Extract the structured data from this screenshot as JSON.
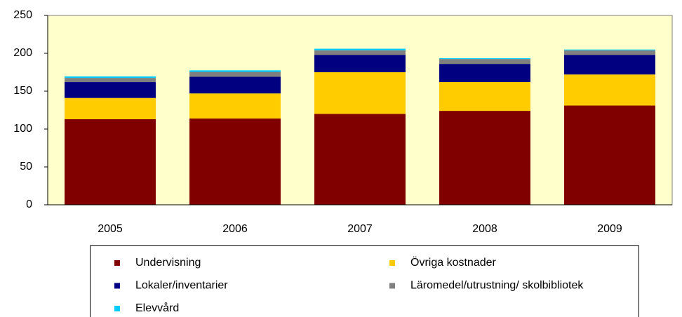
{
  "chart_data": {
    "type": "bar",
    "stacked": true,
    "categories": [
      "2005",
      "2006",
      "2007",
      "2008",
      "2009"
    ],
    "series": [
      {
        "name": "Undervisning",
        "color": "#800000",
        "values": [
          113,
          114,
          120,
          124,
          131
        ]
      },
      {
        "name": "Övriga kostnader",
        "color": "#ffcc00",
        "values": [
          28,
          33,
          55,
          38,
          41
        ]
      },
      {
        "name": "Lokaler/inventarier",
        "color": "#000080",
        "values": [
          21,
          22,
          23,
          24,
          26
        ]
      },
      {
        "name": "Läromedel/utrustning/ skolbibliotek",
        "color": "#808080",
        "values": [
          5.5,
          6.5,
          6,
          6.5,
          6
        ]
      },
      {
        "name": "Elevvård",
        "color": "#00ccff",
        "values": [
          2,
          2,
          2,
          1,
          1
        ]
      }
    ],
    "ylim": [
      0,
      250
    ],
    "yticks": [
      0,
      50,
      100,
      150,
      200,
      250
    ],
    "plot_background": "#ffffcc",
    "legend": "bottom"
  }
}
